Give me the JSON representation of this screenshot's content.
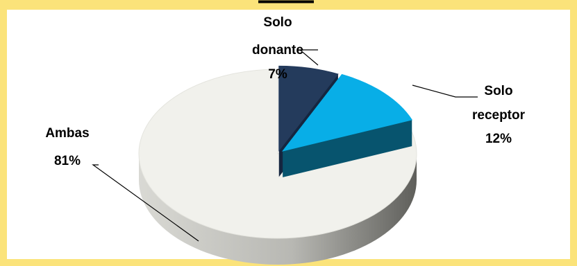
{
  "title_fragment": "——",
  "chart_data": {
    "type": "pie",
    "style": "3d-exploded",
    "legend": "none",
    "slices": [
      {
        "label_lines": [
          "Solo",
          "donante"
        ],
        "percent_label": "7%",
        "value": 7,
        "color": "#243b5c",
        "side_color": "#152640"
      },
      {
        "label_lines": [
          "Solo",
          "receptor"
        ],
        "percent_label": "12%",
        "value": 12,
        "color": "#08aee7",
        "side_color": "#07546e"
      },
      {
        "label_lines": [
          "Ambas"
        ],
        "percent_label": "81%",
        "value": 81,
        "color": "#f1f1ec",
        "side_color": "#8a8a86"
      }
    ]
  }
}
